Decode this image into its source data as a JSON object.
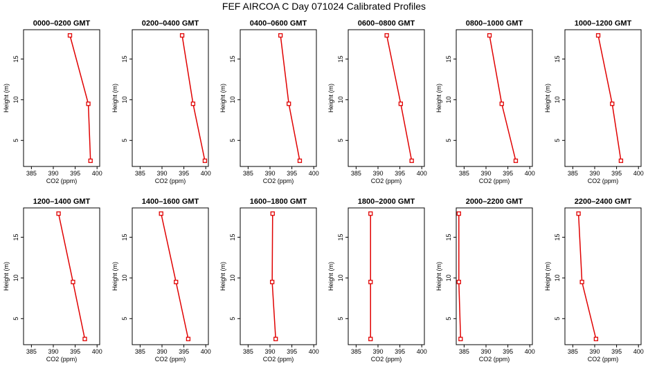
{
  "title": "FEF AIRCOA C  Day 071024  Calibrated Profiles",
  "colors": {
    "line": "#e00000",
    "axis": "#000000"
  },
  "chart_data": [
    {
      "type": "line",
      "title": "0000–0200 GMT",
      "xlabel": "CO2 (ppm)",
      "ylabel": "Height (m)",
      "xticks": [
        385,
        390,
        395,
        400
      ],
      "yticks": [
        5,
        10,
        15
      ],
      "xlim": [
        383.2,
        400.6
      ],
      "ylim": [
        1.8,
        18.6
      ],
      "series": [
        {
          "x": [
            393.8,
            398.0,
            398.5
          ],
          "y": [
            17.9,
            9.5,
            2.5
          ]
        }
      ]
    },
    {
      "type": "line",
      "title": "0200–0400 GMT",
      "xlabel": "CO2 (ppm)",
      "ylabel": "Height (m)",
      "xticks": [
        385,
        390,
        395,
        400
      ],
      "yticks": [
        5,
        10,
        15
      ],
      "xlim": [
        383.2,
        400.6
      ],
      "ylim": [
        1.8,
        18.6
      ],
      "series": [
        {
          "x": [
            394.6,
            397.1,
            399.8
          ],
          "y": [
            17.9,
            9.5,
            2.5
          ]
        }
      ]
    },
    {
      "type": "line",
      "title": "0400–0600 GMT",
      "xlabel": "CO2 (ppm)",
      "ylabel": "Height (m)",
      "xticks": [
        385,
        390,
        395,
        400
      ],
      "yticks": [
        5,
        10,
        15
      ],
      "xlim": [
        383.2,
        400.6
      ],
      "ylim": [
        1.8,
        18.6
      ],
      "series": [
        {
          "x": [
            392.4,
            394.3,
            396.8
          ],
          "y": [
            17.9,
            9.5,
            2.5
          ]
        }
      ]
    },
    {
      "type": "line",
      "title": "0600–0800 GMT",
      "xlabel": "CO2 (ppm)",
      "ylabel": "Height (m)",
      "xticks": [
        385,
        390,
        395,
        400
      ],
      "yticks": [
        5,
        10,
        15
      ],
      "xlim": [
        383.2,
        400.6
      ],
      "ylim": [
        1.8,
        18.6
      ],
      "series": [
        {
          "x": [
            392.0,
            395.2,
            397.7
          ],
          "y": [
            17.9,
            9.5,
            2.5
          ]
        }
      ]
    },
    {
      "type": "line",
      "title": "0800–1000 GMT",
      "xlabel": "CO2 (ppm)",
      "ylabel": "Height (m)",
      "xticks": [
        385,
        390,
        395,
        400
      ],
      "yticks": [
        5,
        10,
        15
      ],
      "xlim": [
        383.2,
        400.6
      ],
      "ylim": [
        1.8,
        18.6
      ],
      "series": [
        {
          "x": [
            390.8,
            393.6,
            396.8
          ],
          "y": [
            17.9,
            9.5,
            2.5
          ]
        }
      ]
    },
    {
      "type": "line",
      "title": "1000–1200 GMT",
      "xlabel": "CO2 (ppm)",
      "ylabel": "Height (m)",
      "xticks": [
        385,
        390,
        395,
        400
      ],
      "yticks": [
        5,
        10,
        15
      ],
      "xlim": [
        383.2,
        400.6
      ],
      "ylim": [
        1.8,
        18.6
      ],
      "series": [
        {
          "x": [
            390.8,
            394.0,
            396.0
          ],
          "y": [
            17.9,
            9.5,
            2.5
          ]
        }
      ]
    },
    {
      "type": "line",
      "title": "1200–1400 GMT",
      "xlabel": "CO2 (ppm)",
      "ylabel": "Height (m)",
      "xticks": [
        385,
        390,
        395,
        400
      ],
      "yticks": [
        5,
        10,
        15
      ],
      "xlim": [
        383.2,
        400.6
      ],
      "ylim": [
        1.8,
        18.6
      ],
      "series": [
        {
          "x": [
            391.2,
            394.5,
            397.2
          ],
          "y": [
            17.9,
            9.5,
            2.5
          ]
        }
      ]
    },
    {
      "type": "line",
      "title": "1400–1600 GMT",
      "xlabel": "CO2 (ppm)",
      "ylabel": "Height (m)",
      "xticks": [
        385,
        390,
        395,
        400
      ],
      "yticks": [
        5,
        10,
        15
      ],
      "xlim": [
        383.2,
        400.6
      ],
      "ylim": [
        1.8,
        18.6
      ],
      "series": [
        {
          "x": [
            389.8,
            393.2,
            396.0
          ],
          "y": [
            17.9,
            9.5,
            2.5
          ]
        }
      ]
    },
    {
      "type": "line",
      "title": "1600–1800 GMT",
      "xlabel": "CO2 (ppm)",
      "ylabel": "Height (m)",
      "xticks": [
        385,
        390,
        395,
        400
      ],
      "yticks": [
        5,
        10,
        15
      ],
      "xlim": [
        383.2,
        400.6
      ],
      "ylim": [
        1.8,
        18.6
      ],
      "series": [
        {
          "x": [
            390.6,
            390.5,
            391.3
          ],
          "y": [
            17.9,
            9.5,
            2.5
          ]
        }
      ]
    },
    {
      "type": "line",
      "title": "1800–2000 GMT",
      "xlabel": "CO2 (ppm)",
      "ylabel": "Height (m)",
      "xticks": [
        385,
        390,
        395,
        400
      ],
      "yticks": [
        5,
        10,
        15
      ],
      "xlim": [
        383.2,
        400.6
      ],
      "ylim": [
        1.8,
        18.6
      ],
      "series": [
        {
          "x": [
            388.3,
            388.3,
            388.3
          ],
          "y": [
            17.9,
            9.5,
            2.5
          ]
        }
      ]
    },
    {
      "type": "line",
      "title": "2000–2200 GMT",
      "xlabel": "CO2 (ppm)",
      "ylabel": "Height (m)",
      "xticks": [
        385,
        390,
        395,
        400
      ],
      "yticks": [
        5,
        10,
        15
      ],
      "xlim": [
        383.2,
        400.6
      ],
      "ylim": [
        1.8,
        18.6
      ],
      "series": [
        {
          "x": [
            383.8,
            383.8,
            384.2
          ],
          "y": [
            17.9,
            9.5,
            2.5
          ]
        }
      ]
    },
    {
      "type": "line",
      "title": "2200–2400 GMT",
      "xlabel": "CO2 (ppm)",
      "ylabel": "Height (m)",
      "xticks": [
        385,
        390,
        395,
        400
      ],
      "yticks": [
        5,
        10,
        15
      ],
      "xlim": [
        383.2,
        400.6
      ],
      "ylim": [
        1.8,
        18.6
      ],
      "series": [
        {
          "x": [
            386.3,
            387.1,
            390.3
          ],
          "y": [
            17.9,
            9.5,
            2.5
          ]
        }
      ]
    }
  ]
}
